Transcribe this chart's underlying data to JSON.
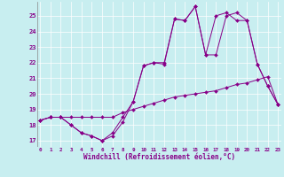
{
  "xlabel": "Windchill (Refroidissement éolien,°C)",
  "bg_color": "#c8eef0",
  "line_color": "#880088",
  "yticks": [
    17,
    18,
    19,
    20,
    21,
    22,
    23,
    24,
    25
  ],
  "xticks": [
    0,
    1,
    2,
    3,
    4,
    5,
    6,
    7,
    8,
    9,
    10,
    11,
    12,
    13,
    14,
    15,
    16,
    17,
    18,
    19,
    20,
    21,
    22,
    23
  ],
  "series1": [
    18.3,
    18.5,
    18.5,
    18.5,
    18.5,
    18.5,
    18.5,
    18.5,
    18.8,
    19.0,
    19.2,
    19.4,
    19.6,
    19.8,
    19.9,
    20.0,
    20.1,
    20.2,
    20.4,
    20.6,
    20.7,
    20.9,
    21.1,
    19.3
  ],
  "series2": [
    18.3,
    18.5,
    18.5,
    18.0,
    17.5,
    17.3,
    17.0,
    17.3,
    18.2,
    19.5,
    21.8,
    22.0,
    21.9,
    24.8,
    24.7,
    25.6,
    22.5,
    22.5,
    25.0,
    25.2,
    24.7,
    21.9,
    20.5,
    19.3
  ],
  "series3": [
    18.3,
    18.5,
    18.5,
    18.0,
    17.5,
    17.3,
    17.0,
    17.5,
    18.5,
    19.5,
    21.8,
    22.0,
    22.0,
    24.8,
    24.7,
    25.6,
    22.5,
    25.0,
    25.2,
    24.7,
    24.7,
    21.9,
    20.5,
    19.3
  ]
}
